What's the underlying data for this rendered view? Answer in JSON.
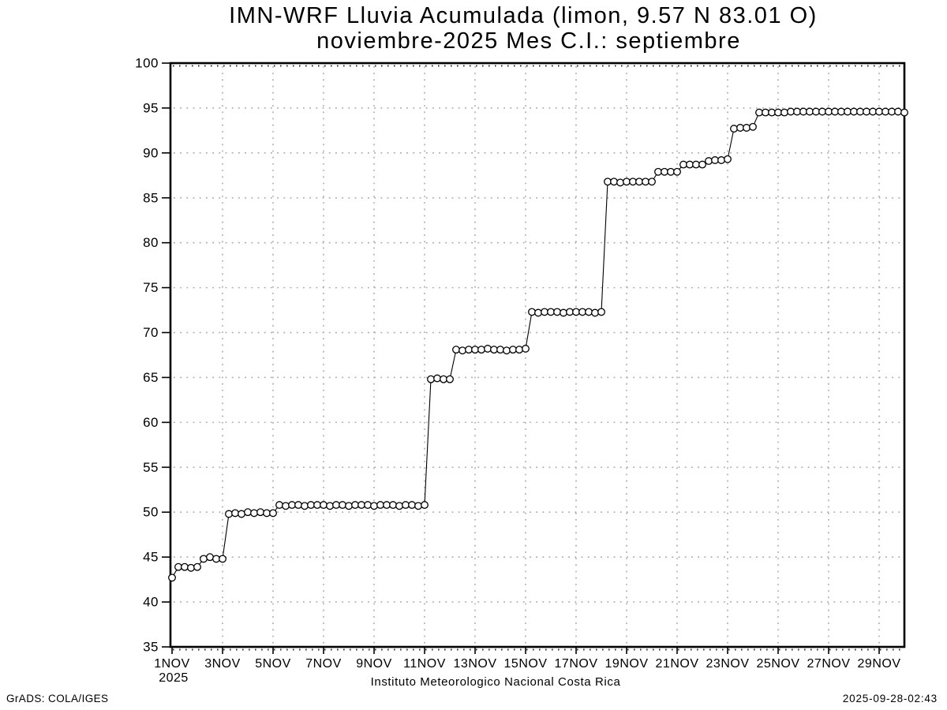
{
  "title": {
    "line1": "IMN-WRF  Lluvia Acumulada (limon, 9.57  N 83.01  O)",
    "line2": "noviembre-2025 Mes C.I.: septiembre"
  },
  "footer": {
    "left": "GrADS: COLA/IGES",
    "right": "2025-09-28-02:43",
    "caption": "Instituto Meteorologico Nacional Costa Rica"
  },
  "chart_data": {
    "type": "line",
    "title": "IMN-WRF  Lluvia Acumulada (limon, 9.57  N 83.01  O)",
    "subtitle": "noviembre-2025 Mes C.I.: septiembre",
    "xlabel": "Instituto Meteorologico Nacional Costa Rica",
    "ylabel": "",
    "marker": "open-circle",
    "line_color": "#000000",
    "grid": true,
    "grid_color": "#aaaaaa",
    "ylim": [
      35,
      100
    ],
    "xlim_days": [
      0,
      29
    ],
    "y_ticks": [
      35,
      40,
      45,
      50,
      55,
      60,
      65,
      70,
      75,
      80,
      85,
      90,
      95,
      100
    ],
    "x_ticks": [
      {
        "day": 0,
        "label": "1NOV",
        "sublabel": "2025"
      },
      {
        "day": 2,
        "label": "3NOV"
      },
      {
        "day": 4,
        "label": "5NOV"
      },
      {
        "day": 6,
        "label": "7NOV"
      },
      {
        "day": 8,
        "label": "9NOV"
      },
      {
        "day": 10,
        "label": "11NOV"
      },
      {
        "day": 12,
        "label": "13NOV"
      },
      {
        "day": 14,
        "label": "15NOV"
      },
      {
        "day": 16,
        "label": "17NOV"
      },
      {
        "day": 18,
        "label": "19NOV"
      },
      {
        "day": 20,
        "label": "21NOV"
      },
      {
        "day": 22,
        "label": "23NOV"
      },
      {
        "day": 24,
        "label": "25NOV"
      },
      {
        "day": 26,
        "label": "27NOV"
      },
      {
        "day": 28,
        "label": "29NOV"
      }
    ],
    "series": [
      {
        "name": "lluvia-acumulada",
        "x_start_day": 0.0,
        "x_step_days": 0.25,
        "y": [
          42.7,
          43.9,
          43.9,
          43.8,
          43.9,
          44.8,
          45.0,
          44.8,
          44.8,
          49.8,
          49.9,
          49.8,
          50.0,
          49.9,
          50.0,
          49.9,
          49.9,
          50.8,
          50.7,
          50.8,
          50.8,
          50.7,
          50.8,
          50.8,
          50.8,
          50.7,
          50.8,
          50.8,
          50.7,
          50.8,
          50.8,
          50.8,
          50.7,
          50.8,
          50.8,
          50.8,
          50.7,
          50.8,
          50.8,
          50.7,
          50.8,
          64.8,
          64.9,
          64.8,
          64.8,
          68.1,
          68.0,
          68.1,
          68.1,
          68.1,
          68.2,
          68.1,
          68.1,
          68.0,
          68.1,
          68.1,
          68.2,
          72.3,
          72.2,
          72.3,
          72.3,
          72.3,
          72.2,
          72.3,
          72.3,
          72.3,
          72.3,
          72.2,
          72.3,
          86.8,
          86.8,
          86.7,
          86.8,
          86.8,
          86.8,
          86.8,
          86.8,
          87.9,
          87.9,
          87.9,
          87.9,
          88.7,
          88.7,
          88.7,
          88.7,
          89.1,
          89.2,
          89.2,
          89.3,
          92.7,
          92.8,
          92.8,
          92.9,
          94.5,
          94.5,
          94.5,
          94.5,
          94.5,
          94.6,
          94.6,
          94.6,
          94.6,
          94.6,
          94.6,
          94.6,
          94.6,
          94.6,
          94.6,
          94.6,
          94.6,
          94.6,
          94.6,
          94.6,
          94.6,
          94.6,
          94.6,
          94.5
        ]
      }
    ]
  }
}
